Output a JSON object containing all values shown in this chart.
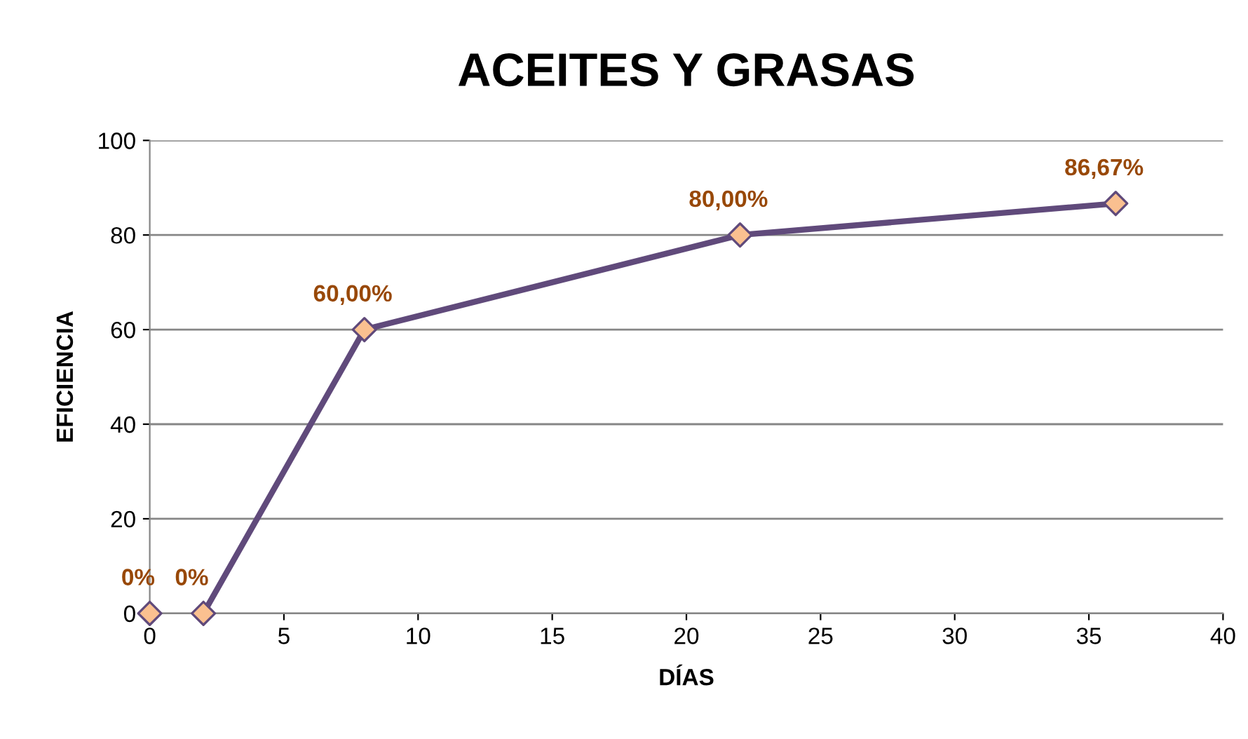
{
  "chart_data": {
    "type": "line",
    "title": "ACEITES Y GRASAS",
    "xlabel": "DÍAS",
    "ylabel": "EFICIENCIA",
    "series": [
      {
        "type": "scatter",
        "color": "#604a7b",
        "x": [
          0
        ],
        "values": [
          0
        ],
        "value_labels": [
          "0%"
        ]
      },
      {
        "color": "#604a7b",
        "x": [
          2,
          8,
          22,
          36
        ],
        "values": [
          0,
          60,
          80,
          86.67
        ],
        "value_labels": [
          "0%",
          "60,00%",
          "80,00%",
          "86,67%"
        ]
      }
    ],
    "xlim": [
      0,
      40
    ],
    "xticks": [
      0,
      5,
      10,
      15,
      20,
      25,
      30,
      35,
      40
    ],
    "ylim": [
      0,
      100
    ],
    "yticks": [
      0,
      20,
      40,
      60,
      80,
      100
    ],
    "grid": "y",
    "marker": "diamond",
    "legend": false
  }
}
